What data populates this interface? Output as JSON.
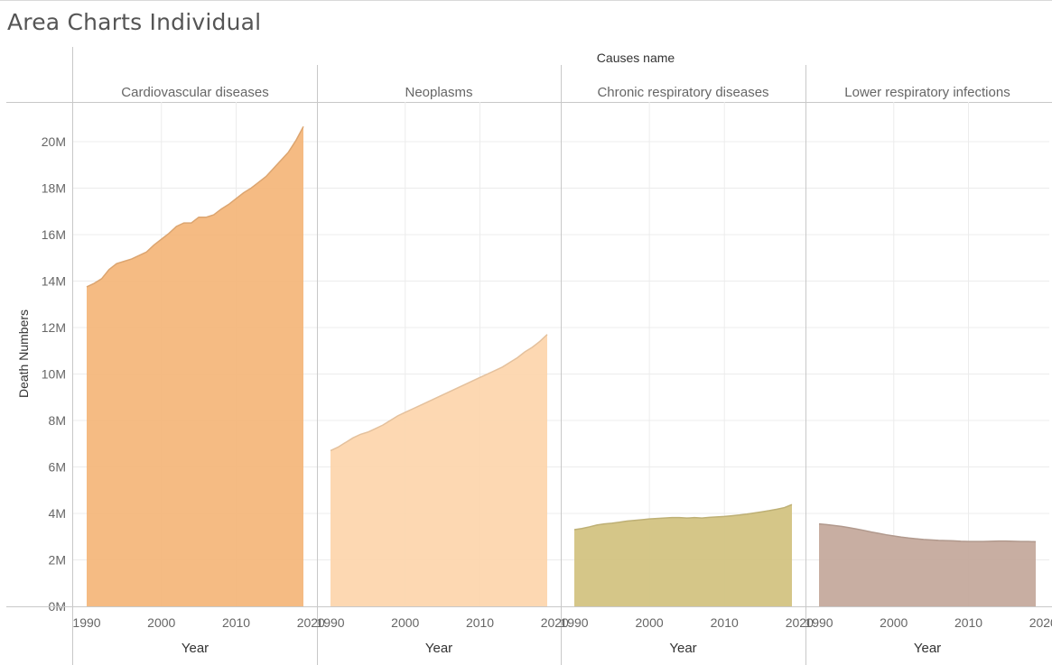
{
  "title": "Area Charts Individual",
  "colors": {
    "Cardiovascular diseases": "#f4b77c",
    "Neoplasms": "#fdd6ae",
    "Chronic respiratory diseases": "#d3c382",
    "Lower respiratory infections": "#c5aa9d"
  },
  "chart_data": {
    "type": "area",
    "title": "Area Charts Individual",
    "facet_label": "Causes name",
    "xlabel": "Year",
    "ylabel": "Death Numbers",
    "ylim": [
      0,
      21500000
    ],
    "y_ticks": [
      0,
      2000000,
      4000000,
      6000000,
      8000000,
      10000000,
      12000000,
      14000000,
      16000000,
      18000000,
      20000000
    ],
    "y_tick_labels": [
      "0M",
      "2M",
      "4M",
      "6M",
      "8M",
      "10M",
      "12M",
      "14M",
      "16M",
      "18M",
      "20M"
    ],
    "x_ticks": [
      1990,
      2000,
      2010,
      2020
    ],
    "x_tick_labels": [
      "1990",
      "2000",
      "2010",
      "2020"
    ],
    "x": [
      1990,
      1991,
      1992,
      1993,
      1994,
      1995,
      1996,
      1997,
      1998,
      1999,
      2000,
      2001,
      2002,
      2003,
      2004,
      2005,
      2006,
      2007,
      2008,
      2009,
      2010,
      2011,
      2012,
      2013,
      2014,
      2015,
      2016,
      2017,
      2018,
      2019
    ],
    "grid": true,
    "series": [
      {
        "name": "Cardiovascular diseases",
        "values": [
          13750000,
          13900000,
          14100000,
          14500000,
          14750000,
          14850000,
          14950000,
          15100000,
          15250000,
          15550000,
          15800000,
          16050000,
          16350000,
          16500000,
          16500000,
          16750000,
          16750000,
          16850000,
          17100000,
          17300000,
          17550000,
          17800000,
          18000000,
          18250000,
          18500000,
          18850000,
          19200000,
          19550000,
          20050000,
          20650000
        ]
      },
      {
        "name": "Neoplasms",
        "values": [
          6700000,
          6850000,
          7050000,
          7250000,
          7400000,
          7500000,
          7650000,
          7800000,
          8000000,
          8200000,
          8350000,
          8500000,
          8650000,
          8800000,
          8950000,
          9100000,
          9250000,
          9400000,
          9550000,
          9700000,
          9850000,
          10000000,
          10150000,
          10300000,
          10500000,
          10700000,
          10950000,
          11150000,
          11400000,
          11700000
        ]
      },
      {
        "name": "Chronic respiratory diseases",
        "values": [
          3300000,
          3350000,
          3420000,
          3500000,
          3550000,
          3580000,
          3620000,
          3670000,
          3700000,
          3730000,
          3760000,
          3780000,
          3800000,
          3820000,
          3820000,
          3800000,
          3820000,
          3800000,
          3830000,
          3850000,
          3870000,
          3900000,
          3930000,
          3970000,
          4020000,
          4070000,
          4120000,
          4180000,
          4250000,
          4380000
        ]
      },
      {
        "name": "Lower respiratory infections",
        "values": [
          3550000,
          3520000,
          3480000,
          3440000,
          3390000,
          3330000,
          3270000,
          3200000,
          3140000,
          3080000,
          3030000,
          2980000,
          2940000,
          2910000,
          2880000,
          2860000,
          2840000,
          2830000,
          2820000,
          2800000,
          2790000,
          2790000,
          2790000,
          2800000,
          2810000,
          2810000,
          2800000,
          2790000,
          2790000,
          2780000
        ]
      }
    ]
  }
}
